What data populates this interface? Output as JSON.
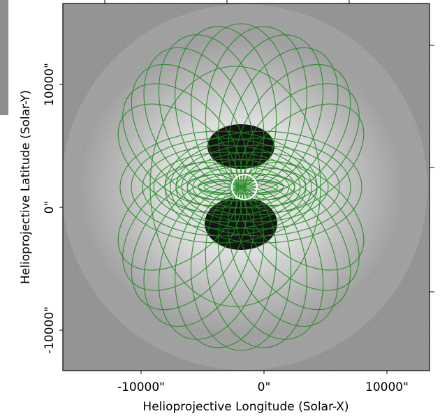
{
  "chart_data": {
    "type": "image",
    "xlabel": "Helioprojective Longitude (Solar-X)",
    "ylabel": "Helioprojective Latitude (Solar-Y)",
    "xlim": [
      -16364,
      13466
    ],
    "ylim": [
      -13295,
      16591
    ],
    "xticks": [
      {
        "value": -10000,
        "label": "-10000\""
      },
      {
        "value": 0,
        "label": "0\""
      },
      {
        "value": 10000,
        "label": "10000\""
      }
    ],
    "yticks": [
      {
        "value": -10000,
        "label": "-10000\""
      },
      {
        "value": 0,
        "label": "0\""
      },
      {
        "value": 10000,
        "label": "10000\""
      }
    ]
  }
}
